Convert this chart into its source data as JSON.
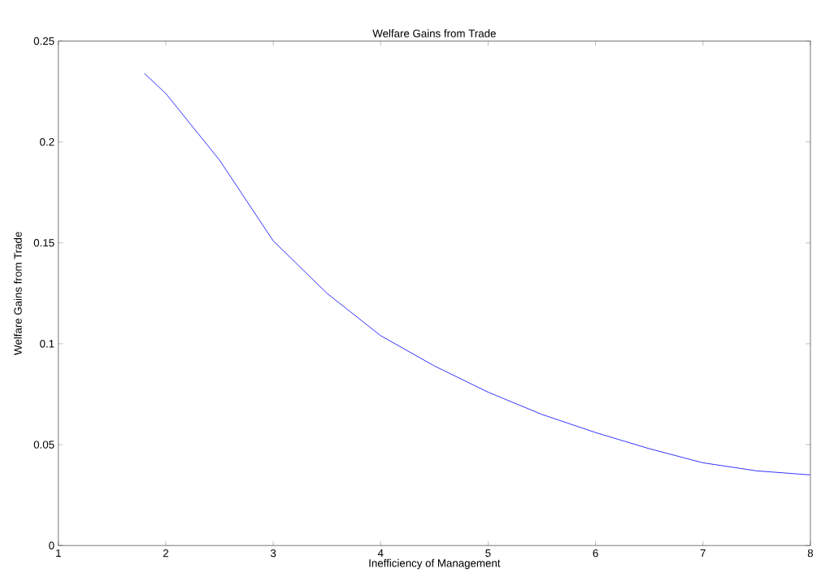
{
  "chart_data": {
    "type": "line",
    "title": "Welfare Gains from Trade",
    "xlabel": "Inefficiency of Management",
    "ylabel": "Welfare Gains from Trade",
    "x": [
      1.8,
      2,
      2.5,
      3,
      3.5,
      4,
      4.5,
      5,
      5.5,
      6,
      6.5,
      7,
      7.5,
      8
    ],
    "series": [
      {
        "color": "#0000ff",
        "values": [
          0.234,
          0.224,
          0.191,
          0.151,
          0.125,
          0.104,
          0.089,
          0.076,
          0.065,
          0.056,
          0.048,
          0.041,
          0.037,
          0.035
        ]
      }
    ],
    "xlim": [
      1,
      8
    ],
    "ylim": [
      0,
      0.25
    ],
    "xticks": [
      1,
      2,
      3,
      4,
      5,
      6,
      7,
      8
    ],
    "yticks": [
      0,
      0.05,
      0.1,
      0.15,
      0.2,
      0.25
    ],
    "grid": false,
    "legend": false,
    "marker": "none",
    "line_style": "solid"
  }
}
